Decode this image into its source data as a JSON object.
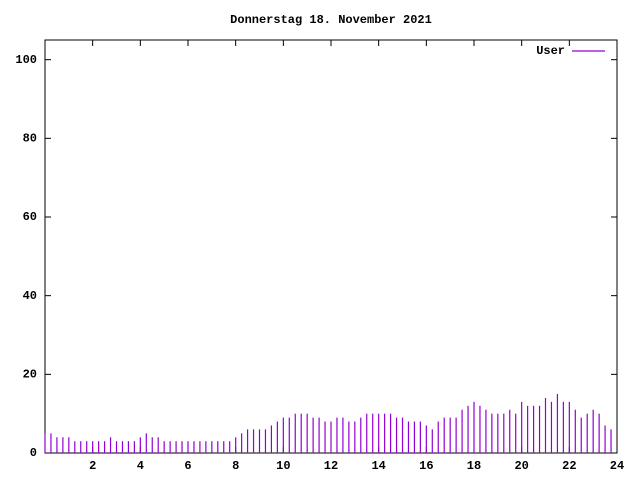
{
  "chart_data": {
    "type": "impulses",
    "title": "Donnerstag 18. November 2021",
    "x": [
      0,
      0.25,
      0.5,
      0.75,
      1,
      1.25,
      1.5,
      1.75,
      2,
      2.25,
      2.5,
      2.75,
      3,
      3.25,
      3.5,
      3.75,
      4,
      4.25,
      4.5,
      4.75,
      5,
      5.25,
      5.5,
      5.75,
      6,
      6.25,
      6.5,
      6.75,
      7,
      7.25,
      7.5,
      7.75,
      8,
      8.25,
      8.5,
      8.75,
      9,
      9.25,
      9.5,
      9.75,
      10,
      10.25,
      10.5,
      10.75,
      11,
      11.25,
      11.5,
      11.75,
      12,
      12.25,
      12.5,
      12.75,
      13,
      13.25,
      13.5,
      13.75,
      14,
      14.25,
      14.5,
      14.75,
      15,
      15.25,
      15.5,
      15.75,
      16,
      16.25,
      16.5,
      16.75,
      17,
      17.25,
      17.5,
      17.75,
      18,
      18.25,
      18.5,
      18.75,
      19,
      19.25,
      19.5,
      19.75,
      20,
      20.25,
      20.5,
      20.75,
      21,
      21.25,
      21.5,
      21.75,
      22,
      22.25,
      22.5,
      22.75,
      23,
      23.25,
      23.5,
      23.75
    ],
    "series": [
      {
        "name": "User",
        "color": "#9400d3",
        "values": [
          5,
          5,
          4,
          4,
          4,
          3,
          3,
          3,
          3,
          3,
          3,
          4,
          3,
          3,
          3,
          3,
          4,
          5,
          4,
          4,
          3,
          3,
          3,
          3,
          3,
          3,
          3,
          3,
          3,
          3,
          3,
          3,
          4,
          5,
          6,
          6,
          6,
          6,
          7,
          8,
          9,
          9,
          10,
          10,
          10,
          9,
          9,
          8,
          8,
          9,
          9,
          8,
          8,
          9,
          10,
          10,
          10,
          10,
          10,
          9,
          9,
          8,
          8,
          8,
          7,
          6,
          8,
          9,
          9,
          9,
          11,
          12,
          13,
          12,
          11,
          10,
          10,
          10,
          11,
          10,
          13,
          12,
          12,
          12,
          14,
          13,
          15,
          13,
          13,
          11,
          9,
          10,
          11,
          10,
          7,
          6
        ]
      }
    ],
    "xlim": [
      0,
      24
    ],
    "xticks": [
      2,
      4,
      6,
      8,
      10,
      12,
      14,
      16,
      18,
      20,
      22,
      24
    ],
    "ylim": [
      0,
      105
    ],
    "yticks": [
      0,
      20,
      40,
      60,
      80,
      100
    ],
    "legend": "top right"
  }
}
